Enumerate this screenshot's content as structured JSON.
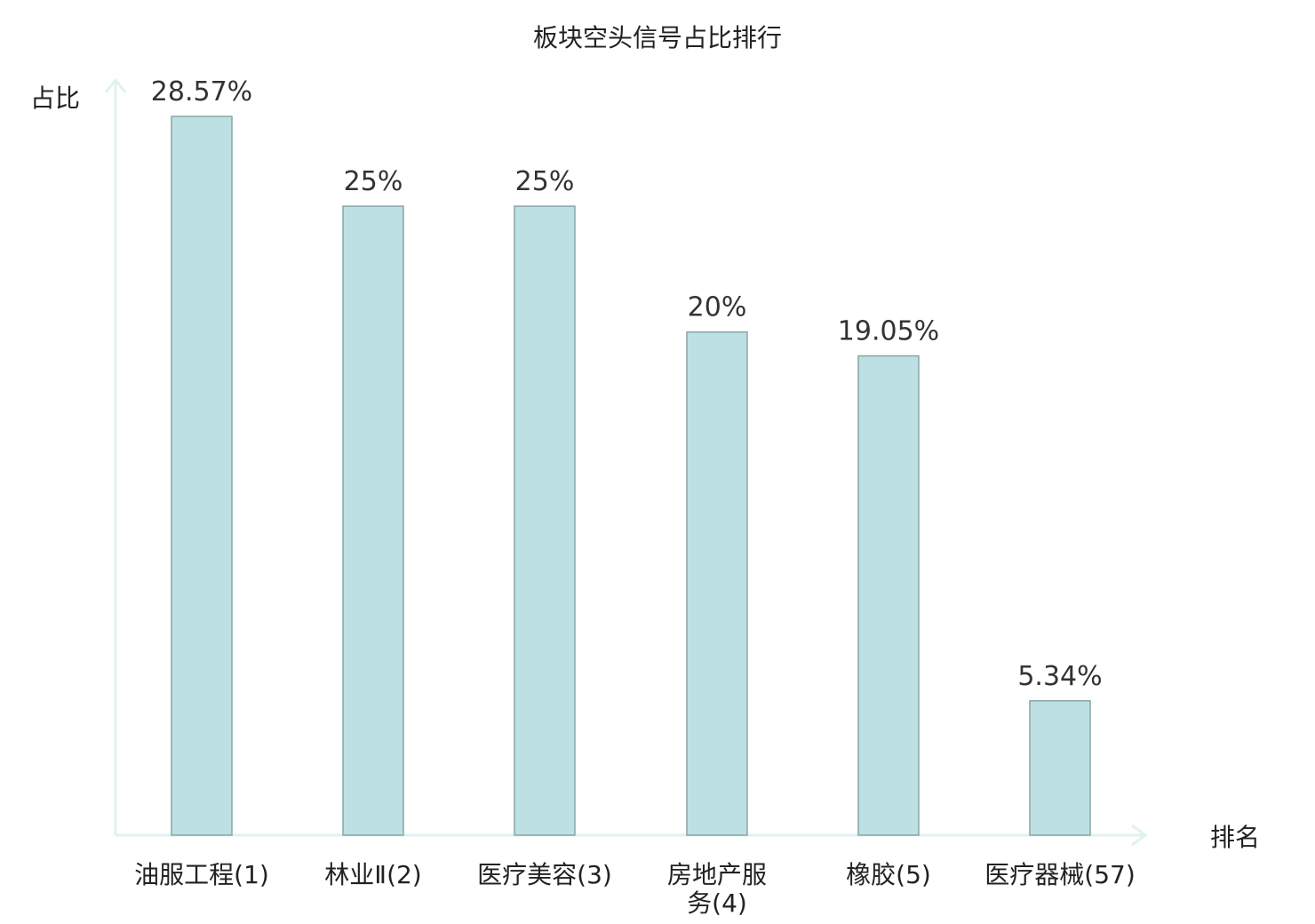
{
  "chart_data": {
    "type": "bar",
    "title": "板块空头信号占比排行",
    "xlabel": "排名",
    "ylabel": "占比",
    "ylim": [
      0,
      30
    ],
    "grid": false,
    "legend": "none",
    "categories": [
      {
        "name": "油服工程",
        "rank": "(1)"
      },
      {
        "name": "林业Ⅱ",
        "rank": "(2)"
      },
      {
        "name": "医疗美容",
        "rank": "(3)"
      },
      {
        "name": "房地产服务",
        "rank": "(4)"
      },
      {
        "name": "橡胶",
        "rank": "(5)"
      },
      {
        "name": "医疗器械",
        "rank": "(57)"
      }
    ],
    "values": [
      28.57,
      25,
      25,
      20,
      19.05,
      5.34
    ],
    "value_labels": [
      "28.57%",
      "25%",
      "25%",
      "20%",
      "19.05%",
      "5.34%"
    ],
    "highlight_index": 5,
    "colors": {
      "bar_fill": "#bde0e3",
      "bar_stroke": "#8aa5a8",
      "axis": "#dff2ef",
      "text": "#222222",
      "highlight_text": "#e02020"
    }
  }
}
